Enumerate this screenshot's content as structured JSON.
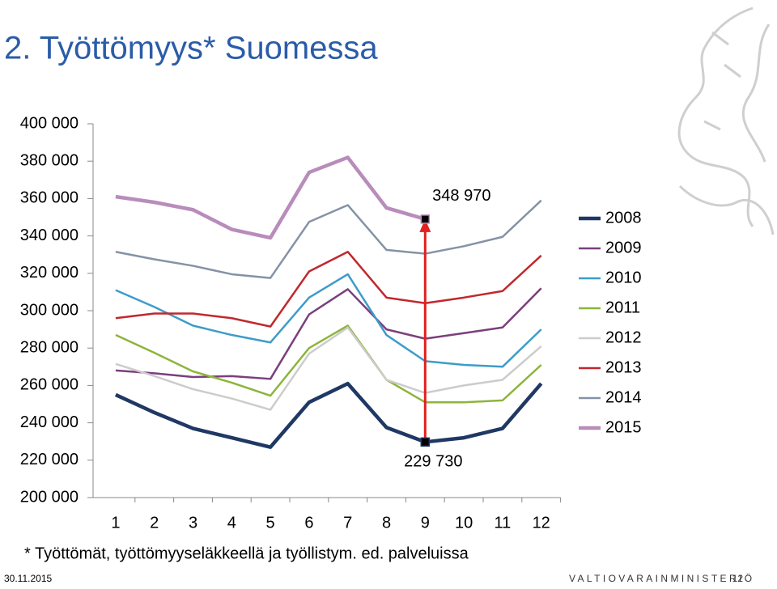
{
  "chart_data": {
    "type": "line",
    "title": "2. Työttömyys* Suomessa",
    "footnote": "* Työttömät, työttömyyseläkkeellä ja työllistym. ed. palveluissa",
    "date": "30.11.2015",
    "organization": "VALTIOVARAINMINISTERIÖ",
    "page_number": "12",
    "categories": [
      "1",
      "2",
      "3",
      "4",
      "5",
      "6",
      "7",
      "8",
      "9",
      "10",
      "11",
      "12"
    ],
    "ylim": [
      200000,
      400000
    ],
    "yticks": [
      {
        "value": 200000,
        "label": "200 000"
      },
      {
        "value": 220000,
        "label": "220 000"
      },
      {
        "value": 240000,
        "label": "240 000"
      },
      {
        "value": 260000,
        "label": "260 000"
      },
      {
        "value": 280000,
        "label": "280 000"
      },
      {
        "value": 300000,
        "label": "300 000"
      },
      {
        "value": 320000,
        "label": "320 000"
      },
      {
        "value": 340000,
        "label": "340 000"
      },
      {
        "value": 360000,
        "label": "360 000"
      },
      {
        "value": 380000,
        "label": "380 000"
      },
      {
        "value": 400000,
        "label": "400 000"
      }
    ],
    "legend": "right",
    "series": [
      {
        "name": "2008",
        "color": "#1f3864",
        "values": [
          255000,
          245500,
          237000,
          232000,
          227000,
          251000,
          261000,
          237500,
          229730,
          232000,
          237000,
          261000
        ],
        "value_labels": [
          null,
          null,
          null,
          null,
          null,
          null,
          null,
          null,
          "229 730",
          null,
          null,
          null
        ]
      },
      {
        "name": "2009",
        "color": "#7b3f7d",
        "values": [
          268000,
          266500,
          264500,
          265000,
          263500,
          298000,
          311500,
          290000,
          285000,
          288000,
          291000,
          312000
        ]
      },
      {
        "name": "2010",
        "color": "#3d9cc9",
        "values": [
          311000,
          302000,
          292000,
          287000,
          283000,
          307000,
          319500,
          287000,
          273000,
          271000,
          270000,
          290000
        ]
      },
      {
        "name": "2011",
        "color": "#8db43c",
        "values": [
          287000,
          277500,
          267500,
          261500,
          254500,
          280000,
          292000,
          263000,
          251000,
          251000,
          252000,
          271000
        ]
      },
      {
        "name": "2012",
        "color": "#cccccc",
        "values": [
          271500,
          265000,
          258000,
          253000,
          247000,
          277000,
          291000,
          263000,
          256000,
          260000,
          263000,
          281000
        ]
      },
      {
        "name": "2013",
        "color": "#c0282d",
        "values": [
          296000,
          298500,
          298500,
          296000,
          291500,
          321000,
          331500,
          307000,
          304000,
          307000,
          310500,
          329500
        ]
      },
      {
        "name": "2014",
        "color": "#8592a6",
        "values": [
          331500,
          327500,
          324000,
          319500,
          317500,
          347500,
          356500,
          332500,
          330500,
          334500,
          339500,
          359000
        ]
      },
      {
        "name": "2015",
        "color": "#b88cbb",
        "values": [
          361000,
          358000,
          354000,
          343500,
          339000,
          374000,
          382000,
          355000,
          348970,
          null,
          null,
          null
        ],
        "value_labels": [
          null,
          null,
          null,
          null,
          null,
          null,
          null,
          null,
          "348 970",
          null,
          null,
          null
        ]
      }
    ]
  }
}
